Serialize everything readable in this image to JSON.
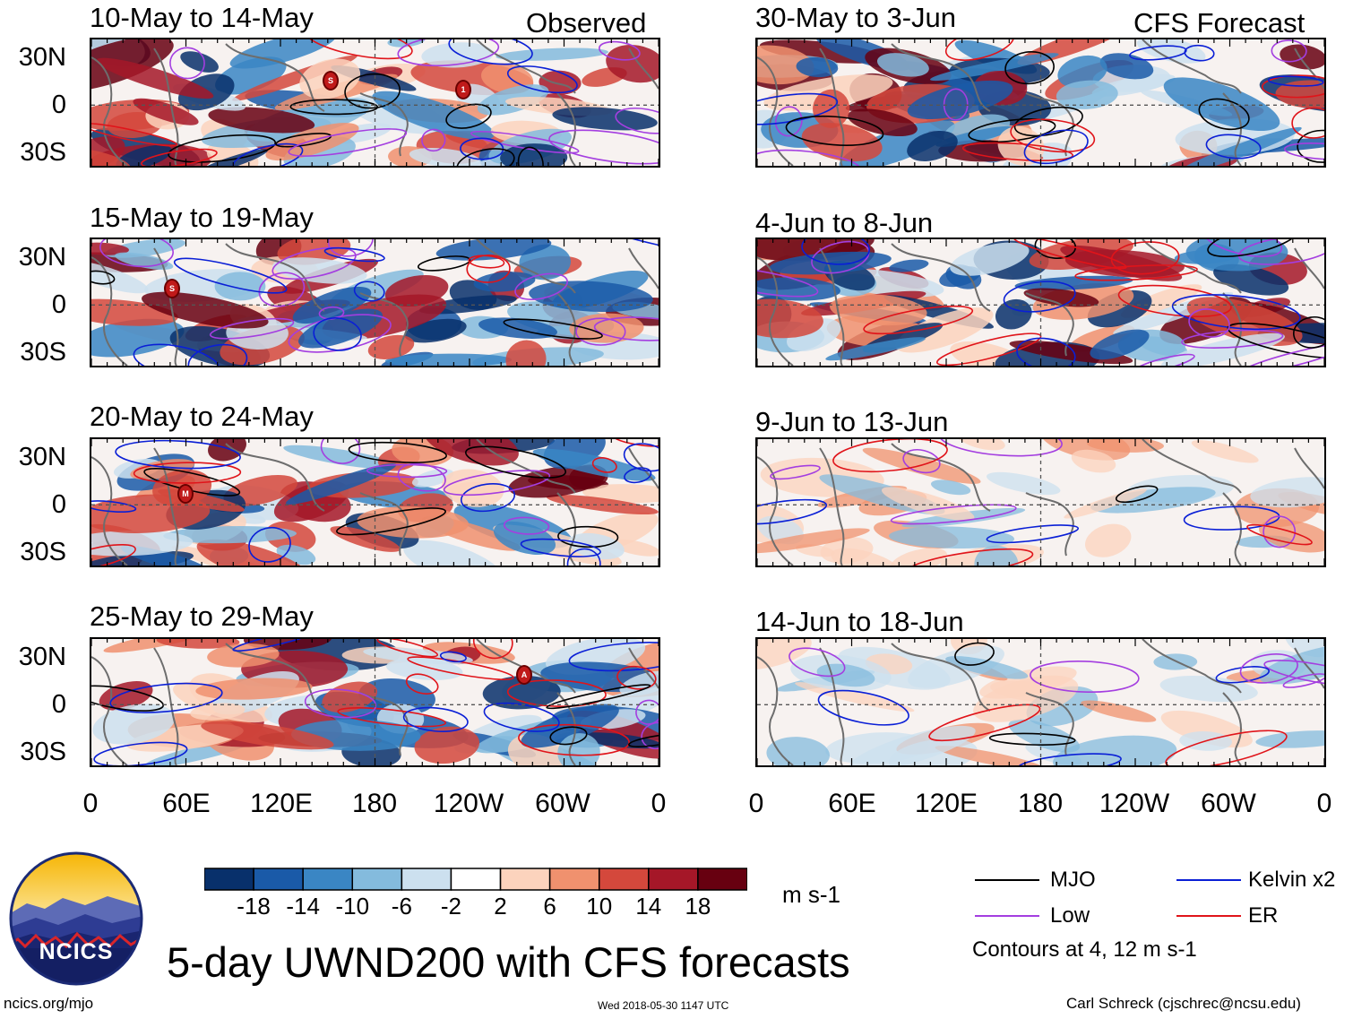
{
  "title": "5-day UWND200 with CFS forecasts",
  "observed_header": "Observed",
  "forecast_header": "CFS Forecast",
  "observed_periods": [
    "10-May to 14-May",
    "15-May to 19-May",
    "20-May to 24-May",
    "25-May to 29-May"
  ],
  "forecast_periods": [
    "30-May to 3-Jun",
    "4-Jun to 8-Jun",
    "9-Jun to 13-Jun",
    "14-Jun to 18-Jun"
  ],
  "lat_labels": [
    "30N",
    "0",
    "30S"
  ],
  "lon_labels": [
    "0",
    "60E",
    "120E",
    "180",
    "120W",
    "60W",
    "0"
  ],
  "colorbar": {
    "ticks": [
      "-18",
      "-14",
      "-10",
      "-6",
      "-2",
      "2",
      "6",
      "10",
      "14",
      "18"
    ],
    "units": "m s-1",
    "colors": [
      "#08306b",
      "#1a5aa8",
      "#3a86c4",
      "#84bbdd",
      "#cce0ef",
      "#ffffff",
      "#fcd3bd",
      "#f0916e",
      "#d4483c",
      "#a51728",
      "#670010"
    ]
  },
  "legend": {
    "items": [
      {
        "label": "MJO",
        "color": "#000000"
      },
      {
        "label": "Kelvin x2",
        "color": "#0a1fd6"
      },
      {
        "label": "Low",
        "color": "#a43ee0"
      },
      {
        "label": "ER",
        "color": "#e0141a"
      }
    ],
    "contours_note": "Contours at 4, 12 m s-1"
  },
  "logo": {
    "text": "NCICS"
  },
  "footer": {
    "left": "ncics.org/mjo",
    "center": "Wed 2018-05-30 1147 UTC",
    "right": "Carl Schreck (cjschrec@ncsu.edu)"
  },
  "storm_markers": [
    {
      "panel": "obs-1",
      "letter": "S"
    },
    {
      "panel": "obs-1",
      "letter": "1"
    },
    {
      "panel": "obs-2",
      "letter": "S"
    },
    {
      "panel": "obs-3",
      "letter": "M"
    },
    {
      "panel": "obs-4",
      "letter": "A"
    }
  ]
}
